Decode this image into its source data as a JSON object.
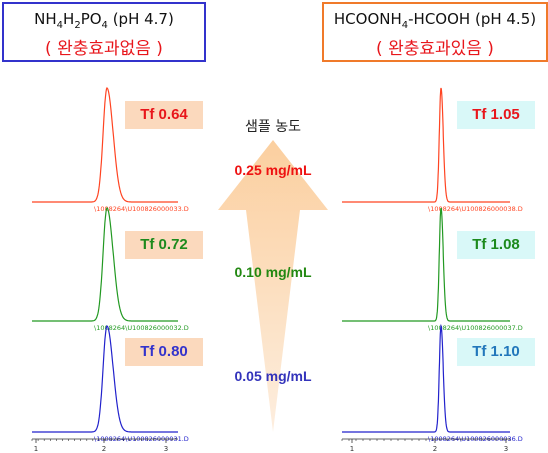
{
  "left_panel": {
    "title_parts": [
      "NH",
      "4",
      "H",
      "2",
      "PO",
      "4",
      " (pH 4.7)"
    ],
    "subtitle": "( 완충효과없음 )",
    "color": "#3333cc"
  },
  "right_panel": {
    "title_parts": [
      "HCOONH",
      "4",
      "-HCOOH (pH 4.5)"
    ],
    "subtitle": "( 완충효과있음 )",
    "color": "#f07a2a"
  },
  "arrow_caption": "샘플 농도",
  "concentrations": [
    {
      "label": "0.25 mg/mL",
      "color": "#ee1111"
    },
    {
      "label": "0.10 mg/mL",
      "color": "#228811"
    },
    {
      "label": "0.05 mg/mL",
      "color": "#3333bb"
    }
  ],
  "left_tf": [
    {
      "label": "Tf 0.64",
      "color": "#e8161b"
    },
    {
      "label": "Tf 0.72",
      "color": "#1d8a1d"
    },
    {
      "label": "Tf 0.80",
      "color": "#3333cc"
    }
  ],
  "right_tf": [
    {
      "label": "Tf 1.05",
      "color": "#e8161b"
    },
    {
      "label": "Tf 1.08",
      "color": "#1d8a1d"
    },
    {
      "label": "Tf 1.10",
      "color": "#2277bb"
    }
  ],
  "left_file_labels": [
    "\\1008264\\U100826000033.D",
    "\\1008264\\U100826000032.D",
    "\\1008264\\U100826000031.D"
  ],
  "right_file_labels": [
    "\\1008264\\U100826000038.D",
    "\\1008264\\U100826000037.D",
    "\\1008264\\U100826000036.D"
  ],
  "axis_ticks": [
    "1",
    "2",
    "3"
  ],
  "trace_colors": [
    "#ff4422",
    "#229922",
    "#2222cc"
  ]
}
